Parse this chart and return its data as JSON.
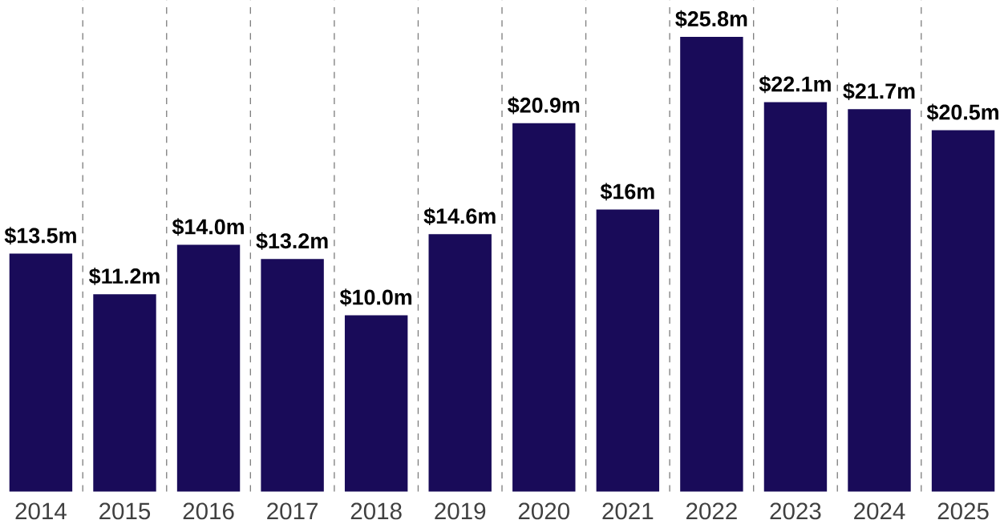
{
  "chart_data": {
    "type": "bar",
    "categories": [
      "2014",
      "2015",
      "2016",
      "2017",
      "2018",
      "2019",
      "2020",
      "2021",
      "2022",
      "2023",
      "2024",
      "2025"
    ],
    "values": [
      13.5,
      11.2,
      14.0,
      13.2,
      10.0,
      14.6,
      20.9,
      16,
      25.8,
      22.1,
      21.7,
      20.5
    ],
    "value_labels": [
      "$13.5m",
      "$11.2m",
      "$14.0m",
      "$13.2m",
      "$10.0m",
      "$14.6m",
      "$20.9m",
      "$16m",
      "$25.8m",
      "$22.1m",
      "$21.7m",
      "$20.5m"
    ],
    "color": "#190b59",
    "grid": "x"
  }
}
